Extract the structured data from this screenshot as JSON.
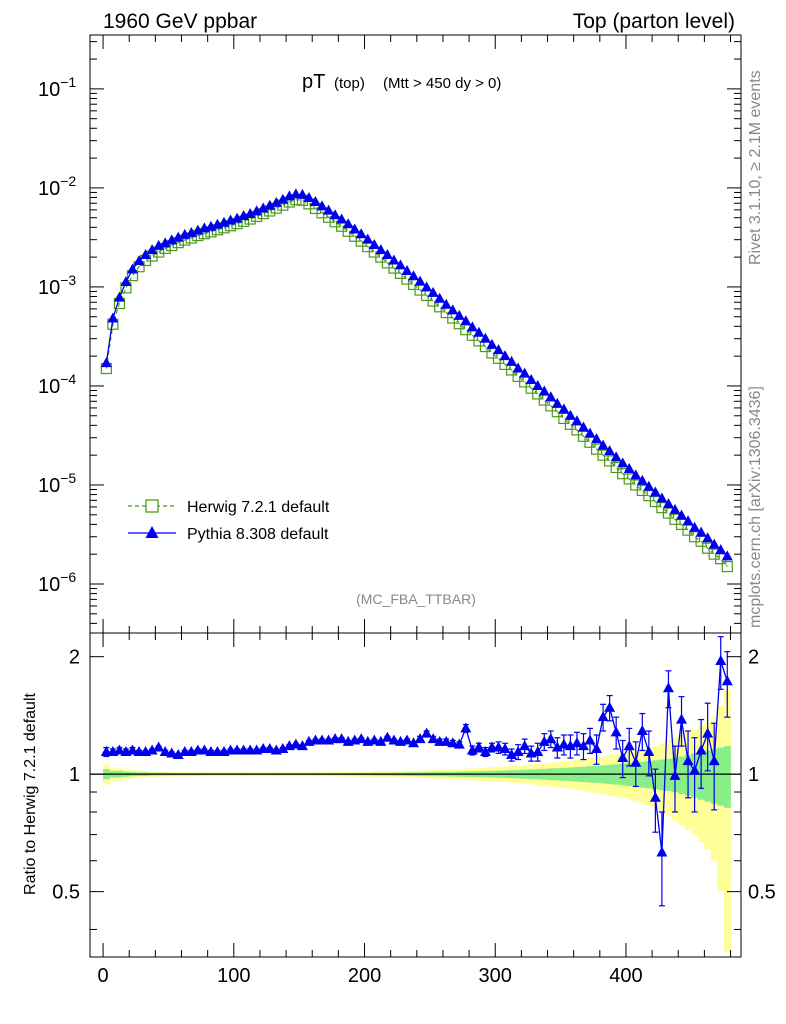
{
  "header": {
    "left": "1960 GeV ppbar",
    "right": "Top (parton level)"
  },
  "side_labels": {
    "rivet": "Rivet 3.1.10, ≥ 2.1M events",
    "mcplots": "mcplots.cern.ch [arXiv:1306.3436]"
  },
  "colors": {
    "herwig": "#4a9a1a",
    "pythia": "#0000ee",
    "band_inner": "#88ee88",
    "band_outer": "#ffff99"
  },
  "chart_data": [
    {
      "type": "line",
      "title_main": "pT",
      "title_sub1": "(top)",
      "title_sub2": "(Mtt > 450 dy > 0)",
      "watermark": "(MC_FBA_TTBAR)",
      "yscale": "log",
      "xlim": [
        -10,
        488
      ],
      "ylim": [
        3.2e-07,
        0.35
      ],
      "ytick_labels": [
        "10^{-6}",
        "10^{-5}",
        "10^{-4}",
        "10^{-3}",
        "10^{-2}",
        "10^{-1}"
      ],
      "legend_position": "bottom-left",
      "x": [
        2.5,
        7.5,
        12.5,
        17.5,
        22.5,
        27.5,
        32.5,
        37.5,
        42.5,
        47.5,
        52.5,
        57.5,
        62.5,
        67.5,
        72.5,
        77.5,
        82.5,
        87.5,
        92.5,
        97.5,
        102.5,
        107.5,
        112.5,
        117.5,
        122.5,
        127.5,
        132.5,
        137.5,
        142.5,
        147.5,
        152.5,
        157.5,
        162.5,
        167.5,
        172.5,
        177.5,
        182.5,
        187.5,
        192.5,
        197.5,
        202.5,
        207.5,
        212.5,
        217.5,
        222.5,
        227.5,
        232.5,
        237.5,
        242.5,
        247.5,
        252.5,
        257.5,
        262.5,
        267.5,
        272.5,
        277.5,
        282.5,
        287.5,
        292.5,
        297.5,
        302.5,
        307.5,
        312.5,
        317.5,
        322.5,
        327.5,
        332.5,
        337.5,
        342.5,
        347.5,
        352.5,
        357.5,
        362.5,
        367.5,
        372.5,
        377.5,
        382.5,
        387.5,
        392.5,
        397.5,
        402.5,
        407.5,
        412.5,
        417.5,
        422.5,
        427.5,
        432.5,
        437.5,
        442.5,
        447.5,
        452.5,
        457.5,
        462.5,
        467.5,
        472.5,
        477.5
      ],
      "series": [
        {
          "name": "Herwig 7.2.1 default",
          "marker": "open-square",
          "linestyle": "dashed",
          "values": [
            0.00015,
            0.00042,
            0.00068,
            0.00098,
            0.0013,
            0.0016,
            0.00185,
            0.00205,
            0.00225,
            0.00245,
            0.00262,
            0.0028,
            0.00297,
            0.00312,
            0.0033,
            0.00345,
            0.0036,
            0.00378,
            0.00395,
            0.00415,
            0.00435,
            0.0046,
            0.00485,
            0.00515,
            0.0055,
            0.00585,
            0.00625,
            0.0067,
            0.0072,
            0.0076,
            0.0075,
            0.0069,
            0.0062,
            0.0056,
            0.00505,
            0.00455,
            0.0041,
            0.00365,
            0.00325,
            0.0029,
            0.00255,
            0.00225,
            0.002,
            0.00175,
            0.00155,
            0.00137,
            0.0012,
            0.00106,
            0.00093,
            0.00082,
            0.00072,
            0.00063,
            0.00055,
            0.000485,
            0.000425,
            0.00037,
            0.000325,
            0.000285,
            0.00025,
            0.000215,
            0.00019,
            0.000165,
            0.000145,
            0.000125,
            0.00011,
            9.5e-05,
            8.3e-05,
            7.2e-05,
            6.3e-05,
            5.5e-05,
            4.7e-05,
            4.1e-05,
            3.6e-05,
            3.1e-05,
            2.7e-05,
            2.3e-05,
            2e-05,
            1.75e-05,
            1.5e-05,
            1.3e-05,
            1.15e-05,
            1e-05,
            8.8e-06,
            7.8e-06,
            6.8e-06,
            5.9e-06,
            5.2e-06,
            4.5e-06,
            4e-06,
            3.5e-06,
            3e-06,
            2.7e-06,
            2.3e-06,
            2e-06,
            1.8e-06,
            1.5e-06
          ]
        },
        {
          "name": "Pythia 8.308 default",
          "marker": "filled-triangle",
          "linestyle": "solid",
          "values": [
            0.00017,
            0.00048,
            0.00078,
            0.00112,
            0.0015,
            0.00182,
            0.0021,
            0.00235,
            0.0026,
            0.00275,
            0.00295,
            0.00315,
            0.00335,
            0.0035,
            0.0037,
            0.0039,
            0.00405,
            0.00425,
            0.00445,
            0.00468,
            0.0049,
            0.0052,
            0.00545,
            0.0058,
            0.0062,
            0.0066,
            0.00705,
            0.0076,
            0.0082,
            0.0086,
            0.0085,
            0.0079,
            0.0072,
            0.0065,
            0.0059,
            0.0053,
            0.0048,
            0.0043,
            0.0038,
            0.0034,
            0.003,
            0.00265,
            0.00235,
            0.0021,
            0.00185,
            0.00165,
            0.00145,
            0.00128,
            0.00113,
            0.00099,
            0.00087,
            0.00076,
            0.00066,
            0.00058,
            0.00051,
            0.00045,
            0.00039,
            0.000345,
            0.0003,
            0.00026,
            0.00023,
            0.0002,
            0.000175,
            0.00015,
            0.000133,
            0.000115,
            0.0001,
            8.8e-05,
            7.7e-05,
            6.6e-05,
            5.8e-05,
            5e-05,
            4.4e-05,
            3.8e-05,
            3.3e-05,
            2.9e-05,
            2.5e-05,
            2.2e-05,
            1.9e-05,
            1.65e-05,
            1.45e-05,
            1.25e-05,
            1.1e-05,
            9.6e-06,
            8.4e-06,
            7.3e-06,
            6.4e-06,
            5.6e-06,
            4.9e-06,
            4.3e-06,
            3.7e-06,
            3.3e-06,
            2.9e-06,
            2.5e-06,
            2.2e-06,
            1.9e-06
          ]
        }
      ]
    },
    {
      "type": "line",
      "ylabel": "Ratio to Herwig 7.2.1 default",
      "xlim": [
        -10,
        488
      ],
      "ylim": [
        0.34,
        2.3
      ],
      "xtick_labels": [
        "0",
        "100",
        "200",
        "300",
        "400"
      ],
      "ytick_labels": [
        "0.5",
        "1",
        "2"
      ],
      "reference_line": 1,
      "series": [
        {
          "name": "Pythia 8.308 default",
          "values": [
            1.14,
            1.14,
            1.15,
            1.14,
            1.15,
            1.14,
            1.14,
            1.15,
            1.17,
            1.14,
            1.13,
            1.12,
            1.14,
            1.14,
            1.15,
            1.15,
            1.14,
            1.14,
            1.14,
            1.15,
            1.15,
            1.15,
            1.15,
            1.15,
            1.16,
            1.16,
            1.15,
            1.16,
            1.18,
            1.19,
            1.18,
            1.21,
            1.22,
            1.22,
            1.22,
            1.23,
            1.23,
            1.21,
            1.22,
            1.23,
            1.21,
            1.22,
            1.21,
            1.24,
            1.22,
            1.21,
            1.22,
            1.2,
            1.23,
            1.27,
            1.23,
            1.21,
            1.21,
            1.2,
            1.19,
            1.31,
            1.15,
            1.17,
            1.14,
            1.17,
            1.17,
            1.16,
            1.12,
            1.14,
            1.18,
            1.13,
            1.14,
            1.21,
            1.23,
            1.17,
            1.19,
            1.18,
            1.2,
            1.18,
            1.22,
            1.16,
            1.4,
            1.48,
            1.28,
            1.1,
            1.18,
            1.07,
            1.29,
            1.14,
            0.87,
            0.63,
            1.66,
            0.99,
            1.38,
            1.08,
            1.02,
            1.15,
            1.27,
            1.08,
            1.95,
            1.73
          ],
          "err": [
            0.03,
            0.02,
            0.02,
            0.02,
            0.02,
            0.01,
            0.01,
            0.01,
            0.01,
            0.01,
            0.01,
            0.01,
            0.01,
            0.01,
            0.01,
            0.01,
            0.01,
            0.01,
            0.01,
            0.01,
            0.01,
            0.01,
            0.01,
            0.01,
            0.01,
            0.01,
            0.01,
            0.01,
            0.01,
            0.01,
            0.01,
            0.01,
            0.01,
            0.01,
            0.01,
            0.01,
            0.01,
            0.01,
            0.01,
            0.01,
            0.01,
            0.01,
            0.01,
            0.01,
            0.01,
            0.01,
            0.01,
            0.01,
            0.02,
            0.02,
            0.02,
            0.02,
            0.02,
            0.02,
            0.02,
            0.03,
            0.03,
            0.03,
            0.03,
            0.03,
            0.04,
            0.04,
            0.04,
            0.05,
            0.05,
            0.05,
            0.06,
            0.06,
            0.06,
            0.07,
            0.07,
            0.08,
            0.08,
            0.09,
            0.09,
            0.1,
            0.11,
            0.11,
            0.12,
            0.12,
            0.13,
            0.14,
            0.14,
            0.15,
            0.16,
            0.17,
            0.18,
            0.19,
            0.2,
            0.21,
            0.22,
            0.23,
            0.25,
            0.27,
            0.3,
            0.33
          ]
        }
      ],
      "bands": {
        "x": [
          2.5,
          7.5,
          12.5,
          17.5,
          22.5,
          27.5,
          32.5,
          37.5,
          42.5,
          47.5,
          52.5,
          57.5,
          62.5,
          67.5,
          72.5,
          77.5,
          82.5,
          87.5,
          92.5,
          97.5,
          102.5,
          107.5,
          112.5,
          117.5,
          122.5,
          127.5,
          132.5,
          137.5,
          142.5,
          147.5,
          152.5,
          157.5,
          162.5,
          167.5,
          172.5,
          177.5,
          182.5,
          187.5,
          192.5,
          197.5,
          202.5,
          207.5,
          212.5,
          217.5,
          222.5,
          227.5,
          232.5,
          237.5,
          242.5,
          247.5,
          252.5,
          257.5,
          262.5,
          267.5,
          272.5,
          277.5,
          282.5,
          287.5,
          292.5,
          297.5,
          302.5,
          307.5,
          312.5,
          317.5,
          322.5,
          327.5,
          332.5,
          337.5,
          342.5,
          347.5,
          352.5,
          357.5,
          362.5,
          367.5,
          372.5,
          377.5,
          382.5,
          387.5,
          392.5,
          397.5,
          402.5,
          407.5,
          412.5,
          417.5,
          422.5,
          427.5,
          432.5,
          437.5,
          442.5,
          447.5,
          452.5,
          457.5,
          462.5,
          467.5,
          472.5,
          477.5
        ],
        "inner_half_width": [
          0.03,
          0.02,
          0.02,
          0.015,
          0.012,
          0.01,
          0.01,
          0.008,
          0.008,
          0.008,
          0.007,
          0.007,
          0.007,
          0.007,
          0.007,
          0.006,
          0.006,
          0.006,
          0.006,
          0.006,
          0.006,
          0.006,
          0.006,
          0.006,
          0.006,
          0.006,
          0.006,
          0.006,
          0.006,
          0.006,
          0.006,
          0.006,
          0.006,
          0.006,
          0.006,
          0.006,
          0.006,
          0.007,
          0.007,
          0.007,
          0.007,
          0.008,
          0.008,
          0.008,
          0.009,
          0.009,
          0.01,
          0.01,
          0.011,
          0.011,
          0.012,
          0.013,
          0.013,
          0.014,
          0.015,
          0.016,
          0.017,
          0.018,
          0.019,
          0.02,
          0.021,
          0.022,
          0.024,
          0.025,
          0.027,
          0.028,
          0.03,
          0.032,
          0.034,
          0.036,
          0.038,
          0.04,
          0.043,
          0.045,
          0.048,
          0.05,
          0.053,
          0.057,
          0.06,
          0.064,
          0.068,
          0.072,
          0.076,
          0.08,
          0.085,
          0.09,
          0.095,
          0.1,
          0.11,
          0.12,
          0.13,
          0.14,
          0.15,
          0.16,
          0.17,
          0.18
        ],
        "outer_half_width": [
          0.06,
          0.04,
          0.035,
          0.03,
          0.025,
          0.02,
          0.018,
          0.016,
          0.015,
          0.014,
          0.013,
          0.013,
          0.012,
          0.012,
          0.012,
          0.012,
          0.012,
          0.012,
          0.012,
          0.012,
          0.012,
          0.012,
          0.012,
          0.012,
          0.012,
          0.012,
          0.012,
          0.012,
          0.012,
          0.012,
          0.012,
          0.012,
          0.012,
          0.012,
          0.012,
          0.013,
          0.013,
          0.014,
          0.014,
          0.015,
          0.015,
          0.016,
          0.017,
          0.017,
          0.018,
          0.019,
          0.02,
          0.021,
          0.022,
          0.023,
          0.025,
          0.026,
          0.027,
          0.029,
          0.031,
          0.033,
          0.035,
          0.037,
          0.039,
          0.041,
          0.044,
          0.046,
          0.049,
          0.052,
          0.055,
          0.058,
          0.062,
          0.066,
          0.07,
          0.074,
          0.078,
          0.083,
          0.088,
          0.093,
          0.099,
          0.105,
          0.11,
          0.12,
          0.125,
          0.13,
          0.14,
          0.15,
          0.16,
          0.17,
          0.18,
          0.2,
          0.22,
          0.24,
          0.26,
          0.28,
          0.3,
          0.33,
          0.36,
          0.4,
          0.5,
          0.65
        ]
      }
    }
  ]
}
